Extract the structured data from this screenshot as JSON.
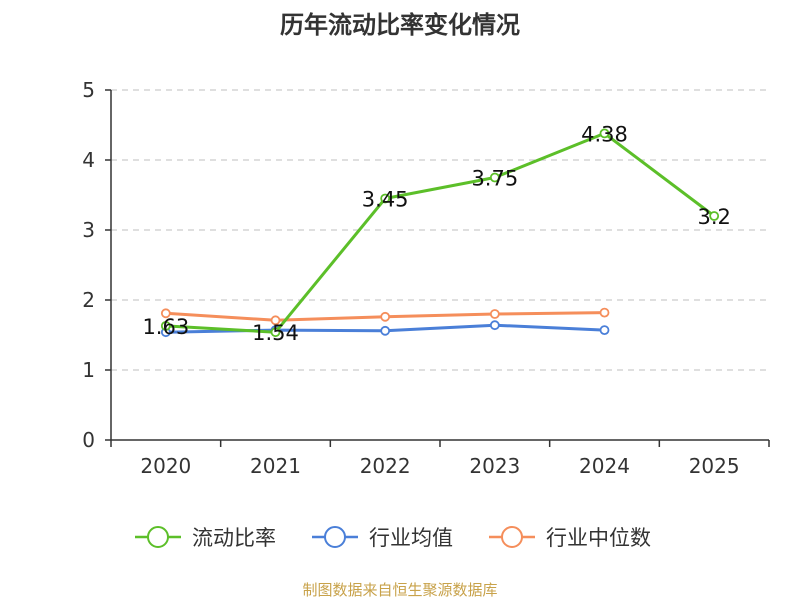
{
  "chart_data": {
    "type": "line",
    "title": "历年流动比率变化情况",
    "categories": [
      "2020",
      "2021",
      "2022",
      "2023",
      "2024",
      "2025"
    ],
    "ylim": [
      0,
      5
    ],
    "yticks": [
      0,
      1,
      2,
      3,
      4,
      5
    ],
    "grid": true,
    "legend_position": "bottom",
    "series": [
      {
        "name": "流动比率",
        "color": "#5cbf29",
        "values": [
          1.63,
          1.54,
          3.45,
          3.75,
          4.38,
          3.2
        ],
        "labels": [
          "1.63",
          "1.54",
          "3.45",
          "3.75",
          "4.38",
          "3.2"
        ]
      },
      {
        "name": "行业均值",
        "color": "#4a7fd8",
        "values": [
          1.54,
          1.57,
          1.56,
          1.64,
          1.57,
          null
        ],
        "labels": []
      },
      {
        "name": "行业中位数",
        "color": "#f58e5b",
        "values": [
          1.81,
          1.71,
          1.76,
          1.8,
          1.82,
          null
        ],
        "labels": []
      }
    ],
    "source": "制图数据来自恒生聚源数据库"
  }
}
